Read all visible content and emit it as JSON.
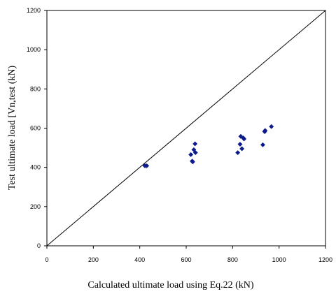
{
  "chart_data": {
    "type": "scatter",
    "xlabel": "Calculated ultimate load using Eq.22 (kN)",
    "ylabel": "Test ultimate load [Vn,test (kN)",
    "xlim": [
      0,
      1200
    ],
    "ylim": [
      0,
      1200
    ],
    "x_ticks": [
      "0",
      "200",
      "400",
      "600",
      "800",
      "1000",
      "1200"
    ],
    "y_ticks": [
      "0",
      "200",
      "400",
      "600",
      "800",
      "1000",
      "1200"
    ],
    "grid": false,
    "legend": "none",
    "reference_line": {
      "from": [
        0,
        0
      ],
      "to": [
        1200,
        1200
      ]
    },
    "series": [
      {
        "color": "#0b1a8c",
        "points": [
          [
            422,
            408
          ],
          [
            430,
            408
          ],
          [
            620,
            465
          ],
          [
            626,
            432
          ],
          [
            628,
            428
          ],
          [
            633,
            490
          ],
          [
            638,
            520
          ],
          [
            640,
            475
          ],
          [
            822,
            475
          ],
          [
            832,
            518
          ],
          [
            835,
            558
          ],
          [
            840,
            495
          ],
          [
            846,
            550
          ],
          [
            849,
            545
          ],
          [
            930,
            515
          ],
          [
            938,
            582
          ],
          [
            940,
            588
          ],
          [
            967,
            608
          ]
        ]
      }
    ]
  }
}
